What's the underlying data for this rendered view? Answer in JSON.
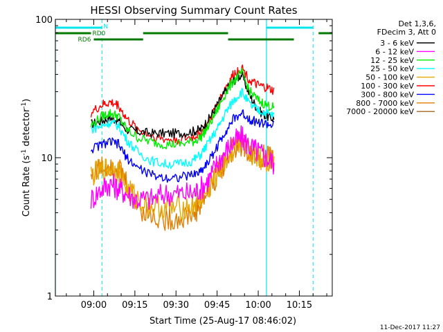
{
  "chart_data": {
    "type": "line",
    "title": "HESSI Observing Summary Count Rates",
    "xlabel": "Start Time (25-Aug-17 08:46:02)",
    "ylabel_main": "Count Rate (s",
    "ylabel_sup1": "-1",
    "ylabel_mid": " detector",
    "ylabel_sup2": "-1",
    "ylabel_end": ")",
    "y_scale": "log",
    "ylim": [
      1,
      100
    ],
    "xlim": [
      "08:46",
      "10:27"
    ],
    "x_ticks": [
      "09:00",
      "09:15",
      "09:30",
      "09:45",
      "10:00",
      "10:15"
    ],
    "y_ticks": [
      "1",
      "10",
      "100"
    ],
    "legend_header": [
      "Det 1,3,6,",
      "FDecim 3, Att 0"
    ],
    "legend_placement": "right",
    "timestamp": "11-Dec-2017 11:27",
    "markers": {
      "vertical_solid": [
        "08:46",
        "10:03"
      ],
      "vertical_dashed": [
        "09:03",
        "10:20"
      ]
    },
    "state_bars": [
      {
        "name": "N",
        "color": "#00e5ee",
        "segments": [
          [
            "08:46",
            "09:03"
          ],
          [
            "10:03",
            "10:20"
          ]
        ]
      },
      {
        "name": "RD0",
        "color": "#007a00",
        "segments": [
          [
            "08:46",
            "08:59"
          ],
          [
            "09:18",
            "09:49"
          ],
          [
            "10:22",
            "10:27"
          ]
        ]
      },
      {
        "name": "RD6",
        "color": "#007a00",
        "segments": [
          [
            "09:00",
            "09:18"
          ],
          [
            "09:49",
            "10:13"
          ]
        ]
      }
    ],
    "x_minutes": [
      0,
      5,
      7,
      10,
      13,
      17,
      20,
      23,
      26,
      30,
      35,
      40,
      45,
      50,
      53,
      56,
      59,
      62,
      65,
      68,
      71,
      74,
      77,
      80
    ],
    "series": [
      {
        "name": "3 - 6 keV",
        "color": "#000000",
        "values": [
          null,
          null,
          null,
          null,
          17.5,
          18.5,
          19.5,
          18.5,
          16,
          15.5,
          15,
          15,
          15,
          15.5,
          16,
          19,
          24,
          30,
          36,
          40,
          28,
          22,
          20,
          19
        ]
      },
      {
        "name": "6 - 12 keV",
        "color": "#ff00ff",
        "values": [
          null,
          null,
          null,
          null,
          5,
          6,
          6.5,
          6,
          5.5,
          5,
          5,
          5.5,
          5.5,
          5.5,
          6,
          7,
          9,
          11,
          13,
          14,
          12,
          11,
          10,
          9
        ]
      },
      {
        "name": "12 - 25 keV",
        "color": "#00ee00",
        "values": [
          null,
          null,
          null,
          null,
          17,
          20,
          21,
          20,
          16,
          14,
          13,
          12.5,
          12.5,
          13,
          14,
          17,
          22,
          29,
          36,
          41,
          30,
          26,
          24,
          23
        ]
      },
      {
        "name": "25 - 50 keV",
        "color": "#00ffff",
        "values": [
          null,
          null,
          null,
          null,
          16,
          17,
          18,
          17,
          13.5,
          11,
          9.5,
          9,
          9,
          9.5,
          10.5,
          13,
          16,
          21,
          26,
          30,
          24,
          22,
          21,
          20
        ]
      },
      {
        "name": "50 - 100 keV",
        "color": "#e6a600",
        "values": [
          null,
          null,
          null,
          null,
          7.5,
          8,
          8.5,
          8,
          6,
          5,
          4.5,
          4.3,
          4.3,
          4.5,
          5,
          6,
          7.5,
          9.5,
          11.5,
          12.5,
          11,
          10,
          9.5,
          9
        ]
      },
      {
        "name": "100 - 300 keV",
        "color": "#ff0000",
        "values": [
          null,
          null,
          null,
          null,
          21,
          24,
          25,
          24,
          19,
          16,
          14.5,
          13.5,
          13.5,
          14,
          15,
          18,
          24,
          32,
          40,
          45,
          36,
          33,
          32,
          30
        ]
      },
      {
        "name": "300 - 800 keV",
        "color": "#0000ff",
        "values": [
          null,
          null,
          null,
          null,
          11.5,
          12.5,
          13,
          12.5,
          10,
          8.5,
          7.5,
          7.2,
          7.2,
          7.5,
          8,
          9.5,
          12,
          15.5,
          19,
          21,
          19,
          18,
          17.5,
          17
        ]
      },
      {
        "name": "800 - 7000 keV",
        "color": "#e07d00",
        "values": [
          null,
          null,
          null,
          null,
          7.5,
          8.5,
          9,
          8.5,
          6.5,
          4.5,
          3.8,
          3.6,
          3.6,
          3.9,
          4.5,
          5.8,
          7.5,
          9.5,
          11.5,
          12.5,
          11,
          10.5,
          10,
          9.5
        ]
      },
      {
        "name": "7000 - 20000 keV",
        "color": "#a0671e",
        "values": []
      }
    ]
  }
}
